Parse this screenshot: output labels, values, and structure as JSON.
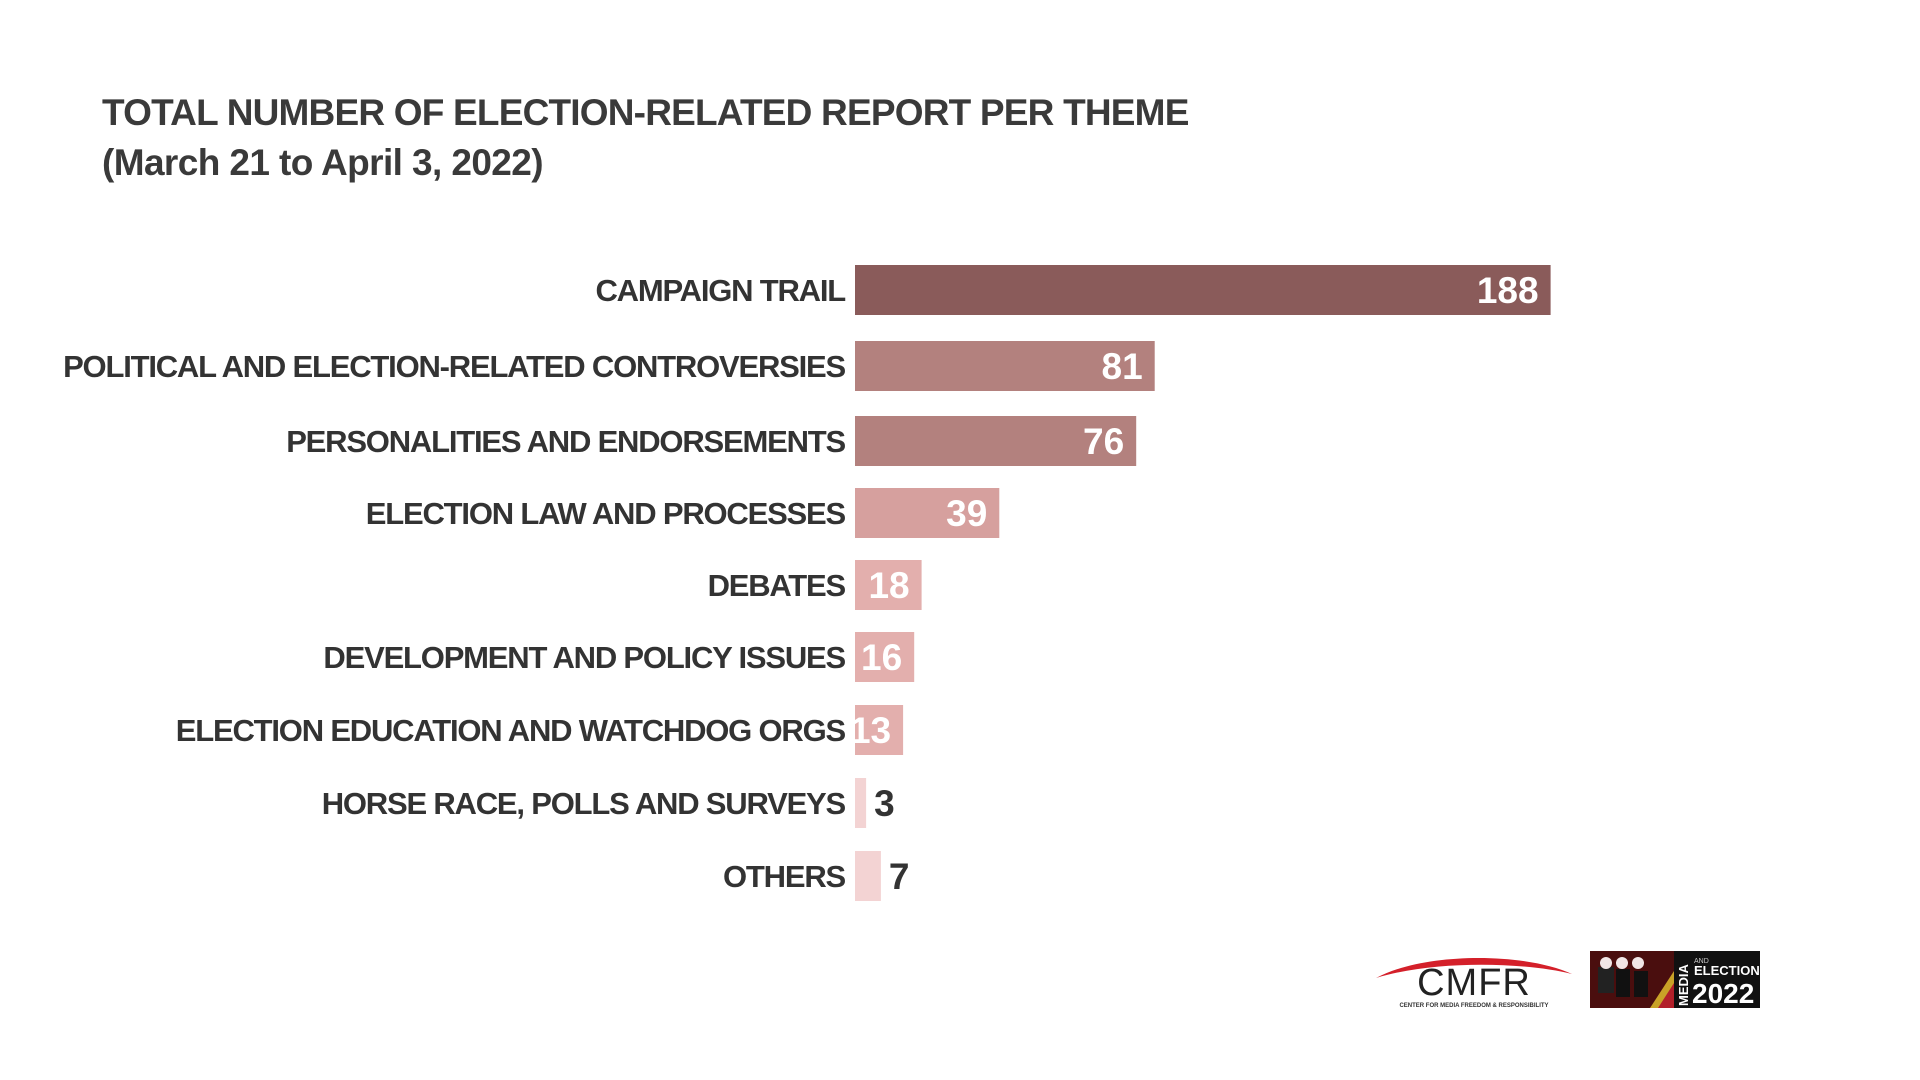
{
  "header": {
    "title": "TOTAL NUMBER OF ELECTION-RELATED REPORT PER THEME",
    "subtitle": "(March 21 to April 3, 2022)"
  },
  "chart_data": {
    "type": "bar",
    "orientation": "horizontal",
    "title": "TOTAL NUMBER OF ELECTION-RELATED REPORT PER THEME",
    "subtitle": "(March 21 to April 3, 2022)",
    "categories": [
      "CAMPAIGN TRAIL",
      "POLITICAL AND ELECTION-RELATED CONTROVERSIES",
      "PERSONALITIES AND ENDORSEMENTS",
      "ELECTION LAW AND PROCESSES",
      "DEBATES",
      "DEVELOPMENT AND POLICY ISSUES",
      "ELECTION EDUCATION AND WATCHDOG ORGS",
      "HORSE RACE, POLLS AND SURVEYS",
      "OTHERS"
    ],
    "values": [
      188,
      81,
      76,
      39,
      18,
      16,
      13,
      3,
      7
    ],
    "bar_colors": [
      "#8a5b5a",
      "#b3817e",
      "#b3817e",
      "#d6a09e",
      "#e3afad",
      "#e3afad",
      "#e3afad",
      "#f3d3d3",
      "#f3d3d3"
    ],
    "label_colors": [
      "#ffffff",
      "#ffffff",
      "#ffffff",
      "#ffffff",
      "#ffffff",
      "#ffffff",
      "#ffffff",
      "#333333",
      "#333333"
    ],
    "label_inside": [
      true,
      true,
      true,
      true,
      true,
      true,
      true,
      false,
      false
    ],
    "xlim": [
      0,
      200
    ],
    "grid": false,
    "legend": "none"
  },
  "logos": {
    "cmfr_text": "CMFR",
    "cmfr_caption": "CENTER FOR MEDIA FREEDOM & RESPONSIBILITY",
    "media_text": "MEDIA",
    "and_text": "AND",
    "elections_text": "ELECTIONS",
    "year_text": "2022"
  }
}
